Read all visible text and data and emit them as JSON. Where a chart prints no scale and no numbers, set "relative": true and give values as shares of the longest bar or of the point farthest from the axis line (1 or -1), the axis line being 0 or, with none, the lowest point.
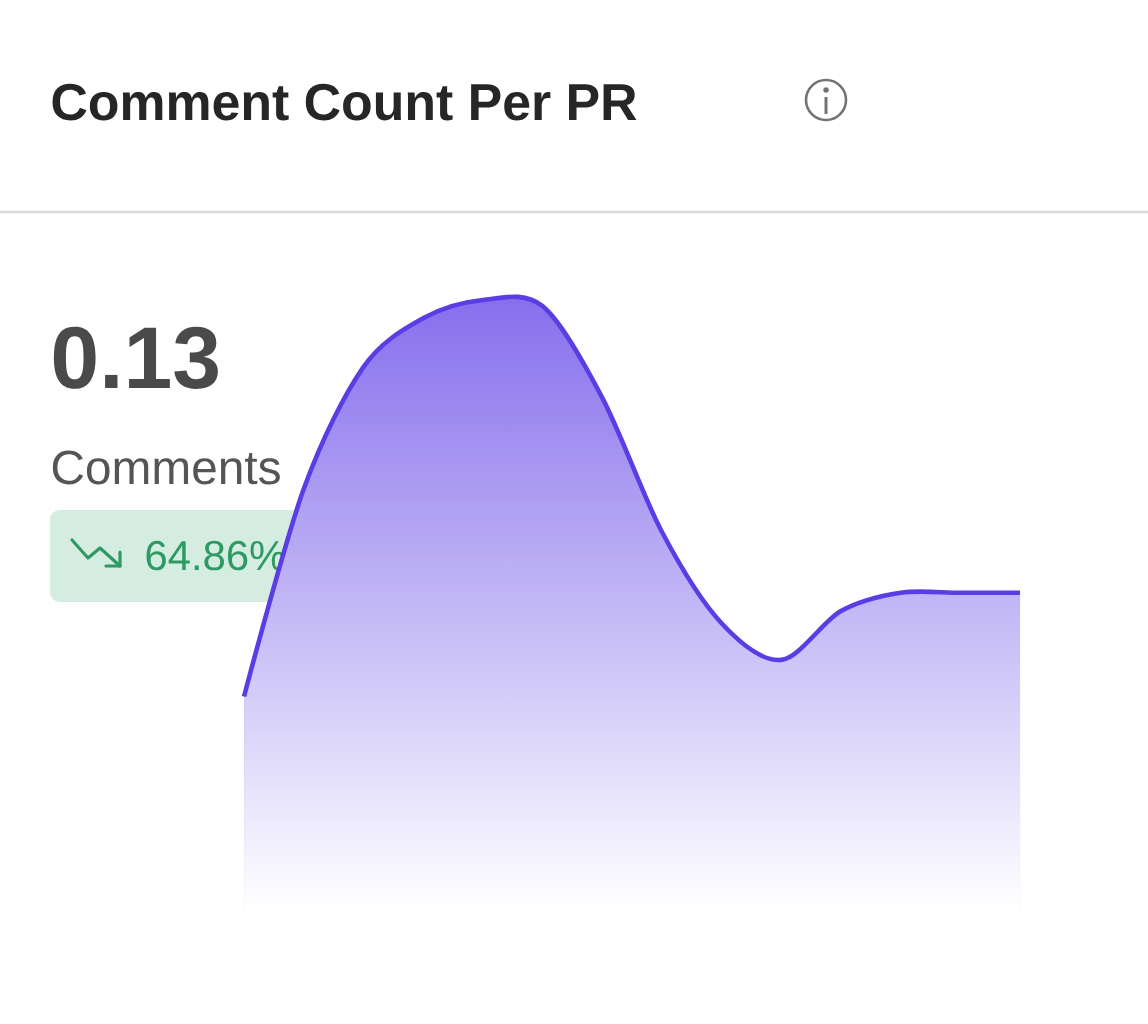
{
  "chart_data": {
    "type": "area",
    "title": "Comment Count Per PR",
    "annotations": [
      "0.13",
      "Comments",
      "64.86%"
    ],
    "categories": [
      null,
      null,
      null,
      null,
      null,
      null,
      null,
      null,
      null,
      null,
      null,
      null,
      null,
      null
    ],
    "values": [
      0.35,
      0.69,
      0.89,
      0.97,
      1.0,
      0.99,
      0.84,
      0.62,
      0.47,
      0.41,
      0.49,
      0.52,
      0.52,
      0.52
    ],
    "color": "#5b3de6",
    "relative": true
  }
}
